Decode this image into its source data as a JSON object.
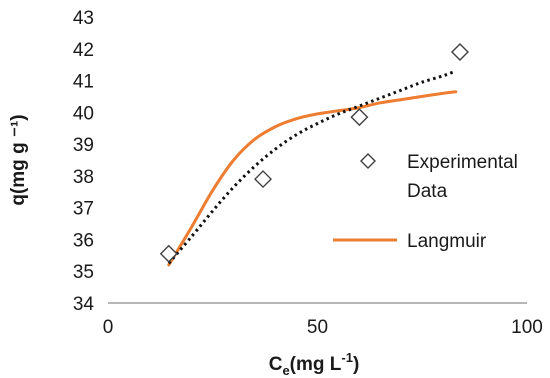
{
  "chart_data": {
    "type": "scatter",
    "xlabel": {
      "main": "C",
      "sub": "e",
      "rest": "(mg L",
      "sup": "-1",
      "end": ")"
    },
    "ylabel": "q(mg g ⁻¹)",
    "xlim": [
      0,
      100
    ],
    "ylim": [
      34,
      43
    ],
    "x_ticks": [
      "0",
      "50",
      "100"
    ],
    "y_ticks": [
      "34",
      "35",
      "36",
      "37",
      "38",
      "39",
      "40",
      "41",
      "42",
      "43"
    ],
    "grid": false,
    "legend_position": "right",
    "series": [
      {
        "name": "Experimental Data",
        "kind": "markers",
        "marker": "diamond",
        "color": "#404040",
        "x": [
          14.5,
          37,
          60,
          84
        ],
        "y": [
          35.55,
          37.9,
          39.85,
          41.9
        ]
      },
      {
        "name": "Langmuir",
        "kind": "line",
        "color": "#ED7D31",
        "x": [
          14.5,
          20,
          25,
          30,
          35,
          40,
          45,
          50,
          55,
          60,
          65,
          70,
          75,
          80,
          83
        ],
        "y": [
          35.2,
          36.4,
          37.55,
          38.5,
          39.15,
          39.55,
          39.8,
          39.95,
          40.05,
          40.15,
          40.3,
          40.4,
          40.5,
          40.6,
          40.65
        ]
      },
      {
        "kind": "dotted-trend",
        "color": "#111111",
        "x": [
          14.5,
          20,
          25,
          30,
          35,
          40,
          45,
          50,
          55,
          60,
          65,
          70,
          75,
          80,
          83
        ],
        "y": [
          35.25,
          36.1,
          36.9,
          37.65,
          38.3,
          38.85,
          39.3,
          39.65,
          39.95,
          40.2,
          40.45,
          40.7,
          40.95,
          41.15,
          41.3
        ]
      }
    ],
    "legend": [
      {
        "label_lines": [
          "Experimental",
          "Data"
        ],
        "series": 0
      },
      {
        "label_lines": [
          "Langmuir"
        ],
        "series": 1
      }
    ]
  }
}
